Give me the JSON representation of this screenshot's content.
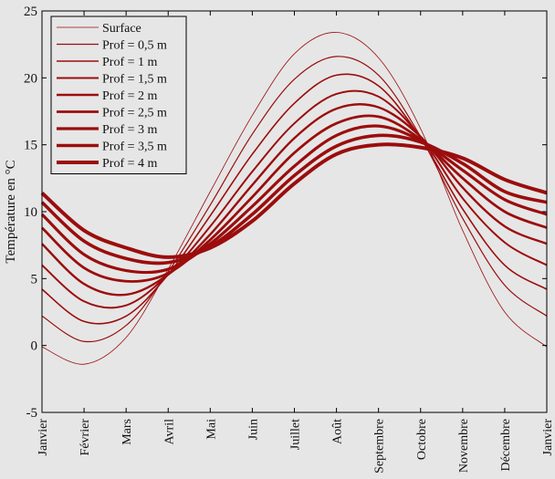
{
  "chart_data": {
    "type": "line",
    "title": "",
    "xlabel": "",
    "ylabel": "Température en °C",
    "ylim": [
      -5,
      25
    ],
    "yticks": [
      -5,
      0,
      5,
      10,
      15,
      20,
      25
    ],
    "x": [
      0,
      1,
      2,
      3,
      4,
      5,
      6,
      7,
      8,
      9,
      10,
      11,
      12
    ],
    "categories": [
      "Janvier",
      "Février",
      "Mars",
      "Avril",
      "Mai",
      "Juin",
      "Juillet",
      "Août",
      "Septembre",
      "Octobre",
      "Novembre",
      "Décembre",
      "Janvier"
    ],
    "legend_position": "top-left",
    "line_color": "#9b0d0d",
    "series": [
      {
        "name": "Surface",
        "values": [
          -0.1,
          -1.4,
          0.6,
          5.7,
          11.5,
          17.2,
          21.8,
          23.4,
          21.5,
          16.2,
          8.6,
          2.5,
          -0.1
        ]
      },
      {
        "name": "Prof = 0,5 m",
        "values": [
          2.2,
          0.3,
          1.5,
          5.5,
          10.5,
          15.8,
          19.9,
          21.6,
          20.2,
          15.6,
          9.5,
          4.5,
          2.2
        ]
      },
      {
        "name": "Prof = 1 m",
        "values": [
          4.2,
          1.8,
          2.2,
          5.3,
          9.7,
          14.3,
          18.1,
          20.2,
          19.4,
          15.5,
          10.2,
          6.0,
          4.2
        ]
      },
      {
        "name": "Prof = 1,5 m",
        "values": [
          6.0,
          3.3,
          3.0,
          5.3,
          8.9,
          13.0,
          16.6,
          18.8,
          18.6,
          15.6,
          11.0,
          7.7,
          6.0
        ]
      },
      {
        "name": "Prof = 2 m",
        "values": [
          7.6,
          4.6,
          3.8,
          5.3,
          8.3,
          12.0,
          15.5,
          17.7,
          17.8,
          15.6,
          11.8,
          8.9,
          7.6
        ]
      },
      {
        "name": "Prof = 2,5 m",
        "values": [
          8.8,
          5.8,
          4.8,
          5.4,
          7.9,
          11.1,
          14.4,
          16.6,
          17.1,
          15.4,
          12.5,
          10.0,
          8.8
        ]
      },
      {
        "name": "Prof = 3 m",
        "values": [
          9.8,
          6.8,
          5.6,
          5.7,
          7.6,
          10.4,
          13.4,
          15.7,
          16.4,
          15.3,
          13.1,
          10.9,
          9.8
        ]
      },
      {
        "name": "Prof = 3,5 m",
        "values": [
          10.7,
          7.8,
          6.5,
          6.2,
          7.4,
          9.8,
          12.7,
          14.9,
          15.7,
          15.2,
          13.6,
          11.5,
          10.7
        ]
      },
      {
        "name": "Prof = 4 m",
        "values": [
          11.4,
          8.6,
          7.3,
          6.6,
          7.3,
          9.3,
          12.1,
          14.3,
          15.0,
          14.8,
          14.0,
          12.4,
          11.4
        ]
      }
    ]
  }
}
